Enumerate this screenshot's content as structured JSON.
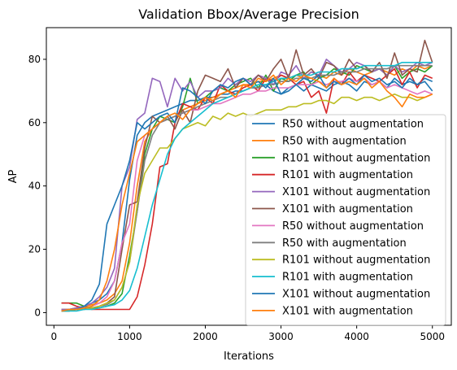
{
  "chart_data": {
    "type": "line",
    "title": "Validation Bbox/Average Precision",
    "xlabel": "Iterations",
    "ylabel": "AP",
    "xlim": [
      -100,
      5250
    ],
    "ylim": [
      -4,
      90
    ],
    "xticks": [
      0,
      1000,
      2000,
      3000,
      4000,
      5000
    ],
    "yticks": [
      0,
      20,
      40,
      60,
      80
    ],
    "grid": false,
    "legend_position": "lower-right",
    "x": [
      100,
      200,
      300,
      400,
      500,
      600,
      700,
      800,
      900,
      1000,
      1100,
      1200,
      1300,
      1400,
      1500,
      1600,
      1700,
      1800,
      1900,
      2000,
      2100,
      2200,
      2300,
      2400,
      2500,
      2600,
      2700,
      2800,
      2900,
      3000,
      3100,
      3200,
      3300,
      3400,
      3500,
      3600,
      3700,
      3800,
      3900,
      4000,
      4100,
      4200,
      4300,
      4400,
      4500,
      4600,
      4700,
      4800,
      4900,
      5000
    ],
    "series": [
      {
        "name": "R50 without augmentation",
        "color": "#1f77b4",
        "values": [
          1,
          1,
          1.5,
          2,
          3,
          4,
          6,
          10,
          22,
          42,
          56,
          60,
          62,
          63,
          64,
          65,
          66,
          67,
          67,
          68,
          68,
          69,
          69,
          70,
          70,
          71,
          71,
          72,
          70,
          69,
          71,
          72,
          70,
          72,
          71,
          70,
          72,
          73,
          72,
          70,
          73,
          72,
          73,
          71,
          74,
          72,
          73,
          72,
          74,
          73
        ]
      },
      {
        "name": "R50 with augmentation",
        "color": "#ff7f0e",
        "values": [
          1,
          1,
          1.5,
          2,
          2.5,
          3,
          4,
          6,
          10,
          22,
          40,
          54,
          58,
          60,
          61,
          62,
          64,
          65,
          66,
          67,
          68,
          69,
          70,
          71,
          72,
          72,
          73,
          73,
          74,
          75,
          74,
          75,
          74,
          76,
          75,
          74,
          76,
          75,
          77,
          76,
          75,
          76,
          77,
          76,
          75,
          77,
          76,
          78,
          77,
          78
        ]
      },
      {
        "name": "R101 without augmentation",
        "color": "#2ca02c",
        "values": [
          3,
          3,
          3,
          2,
          1.5,
          1.5,
          2,
          3,
          6,
          18,
          32,
          50,
          58,
          62,
          61,
          60,
          65,
          74,
          66,
          68,
          70,
          71,
          70,
          72,
          73,
          74,
          71,
          75,
          70,
          74,
          73,
          75,
          76,
          72,
          74,
          75,
          77,
          76,
          75,
          78,
          77,
          76,
          77,
          75,
          78,
          74,
          76,
          77,
          76,
          78
        ]
      },
      {
        "name": "R101 with augmentation",
        "color": "#d62728",
        "values": [
          3,
          3,
          2,
          1.5,
          1,
          1,
          1,
          1,
          1,
          1,
          5,
          15,
          28,
          46,
          47,
          60,
          66,
          65,
          64,
          68,
          66,
          72,
          70,
          69,
          71,
          72,
          70,
          74,
          73,
          75,
          74,
          72,
          73,
          68,
          70,
          63,
          74,
          72,
          76,
          73,
          75,
          74,
          73,
          75,
          77,
          72,
          76,
          71,
          75,
          74
        ]
      },
      {
        "name": "X101 without augmentation",
        "color": "#9467bd",
        "values": [
          1,
          1,
          1.5,
          2,
          3,
          5,
          8,
          14,
          40,
          46,
          61,
          63,
          74,
          73,
          65,
          74,
          70,
          73,
          68,
          70,
          70,
          71,
          74,
          72,
          74,
          73,
          75,
          74,
          72,
          76,
          75,
          78,
          74,
          76,
          75,
          80,
          78,
          76,
          77,
          79,
          78,
          76,
          77,
          75,
          78,
          76,
          77,
          79,
          78,
          79
        ]
      },
      {
        "name": "X101 with augmentation",
        "color": "#8c564b",
        "values": [
          0.5,
          0.5,
          1,
          1,
          1.5,
          2,
          3,
          5,
          20,
          34,
          35,
          52,
          62,
          60,
          62,
          58,
          64,
          60,
          70,
          75,
          74,
          73,
          77,
          71,
          74,
          72,
          75,
          73,
          77,
          80,
          74,
          83,
          75,
          77,
          74,
          79,
          78,
          75,
          80,
          77,
          78,
          76,
          79,
          74,
          82,
          75,
          77,
          76,
          86,
          79
        ]
      },
      {
        "name": "R50 without augmentation",
        "color": "#e377c2",
        "values": [
          0.5,
          1,
          1,
          1.5,
          2,
          3,
          5,
          10,
          22,
          28,
          48,
          56,
          58,
          60,
          61,
          62,
          63,
          64,
          64,
          65,
          66,
          66,
          67,
          68,
          69,
          69,
          70,
          70,
          71,
          71,
          71,
          72,
          72,
          72,
          73,
          72,
          73,
          73,
          74,
          73,
          74,
          72,
          73,
          71,
          72,
          71,
          70,
          69,
          70,
          69
        ]
      },
      {
        "name": "R50 with augmentation",
        "color": "#7f7f7f",
        "values": [
          0.5,
          0.5,
          1,
          1,
          1.5,
          2,
          2.5,
          4,
          8,
          16,
          32,
          48,
          56,
          60,
          61,
          62,
          63,
          64,
          65,
          66,
          67,
          68,
          68,
          69,
          70,
          71,
          71,
          72,
          72,
          73,
          73,
          74,
          74,
          74,
          75,
          75,
          75,
          76,
          76,
          76,
          77,
          77,
          77,
          77,
          78,
          78,
          78,
          78,
          78,
          78
        ]
      },
      {
        "name": "R101 without augmentation",
        "color": "#bcbd22",
        "values": [
          0.5,
          0.5,
          1,
          1,
          1.5,
          2,
          3,
          4,
          8,
          16,
          34,
          44,
          48,
          52,
          52,
          55,
          58,
          59,
          60,
          59,
          62,
          61,
          63,
          62,
          63,
          62,
          63,
          64,
          64,
          64,
          65,
          65,
          66,
          66,
          67,
          67,
          66,
          68,
          68,
          67,
          68,
          68,
          67,
          68,
          69,
          68,
          68,
          67,
          68,
          69
        ]
      },
      {
        "name": "R101 with augmentation",
        "color": "#17becf",
        "values": [
          0.5,
          0.5,
          0.5,
          1,
          1,
          1.5,
          2,
          2.5,
          4,
          7,
          14,
          24,
          34,
          42,
          50,
          55,
          58,
          60,
          62,
          64,
          66,
          67,
          68,
          69,
          70,
          71,
          72,
          72,
          73,
          74,
          74,
          75,
          75,
          75,
          76,
          76,
          76,
          77,
          77,
          77,
          78,
          78,
          78,
          78,
          78,
          79,
          79,
          79,
          79,
          79
        ]
      },
      {
        "name": "X101 without augmentation",
        "color": "#1f77b4",
        "values": [
          0.5,
          1,
          1,
          2,
          4,
          9,
          28,
          34,
          40,
          48,
          60,
          58,
          60,
          62,
          63,
          60,
          71,
          70,
          68,
          66,
          70,
          72,
          71,
          73,
          74,
          72,
          73,
          71,
          74,
          69,
          70,
          72,
          74,
          73,
          75,
          71,
          73,
          72,
          74,
          72,
          75,
          73,
          74,
          72,
          73,
          71,
          74,
          72,
          73,
          70
        ]
      },
      {
        "name": "X101 with augmentation",
        "color": "#ff7f0e",
        "values": [
          0.5,
          1,
          1,
          1.5,
          2,
          4,
          10,
          20,
          34,
          44,
          54,
          56,
          58,
          60,
          62,
          63,
          61,
          64,
          66,
          68,
          67,
          69,
          70,
          68,
          72,
          71,
          74,
          73,
          75,
          72,
          74,
          73,
          75,
          74,
          73,
          71,
          74,
          72,
          73,
          72,
          74,
          71,
          73,
          70,
          68,
          65,
          69,
          68,
          68,
          69
        ]
      }
    ]
  }
}
